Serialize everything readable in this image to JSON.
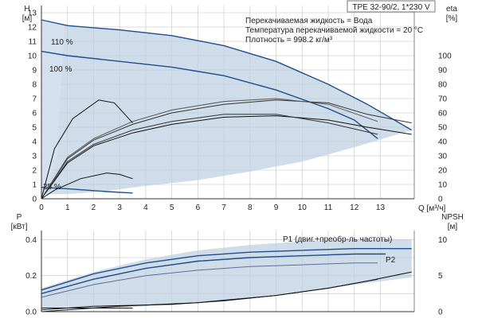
{
  "chart_data": [
    {
      "type": "line",
      "title": "TPE 32-90/2, 1*230 V",
      "info": [
        "Перекачиваемая жидкость = Вода",
        "Температура перекачиваемой жидкости = 20 °C",
        "Плотность = 998.2 кг/м³"
      ],
      "y_left": {
        "label": "H",
        "unit": "[м]",
        "ticks": [
          0,
          1,
          2,
          3,
          4,
          5,
          6,
          7,
          8,
          9,
          10,
          11,
          12,
          13
        ]
      },
      "y_right": {
        "label": "eta",
        "unit": "[%]",
        "ticks": [
          0,
          10,
          20,
          30,
          40,
          50,
          60,
          70,
          80,
          90,
          100
        ]
      },
      "x": {
        "label": "Q [м³/ч]",
        "ticks": [
          0,
          1,
          2,
          3,
          4,
          5,
          6,
          7,
          8,
          9,
          10,
          11,
          12,
          13
        ]
      },
      "xlim": [
        0,
        14.3
      ],
      "ylim": [
        0,
        13.5
      ],
      "grid": true,
      "annotations": [
        "110 %",
        "100 %",
        "25 %"
      ],
      "series": [
        {
          "name": "110 %",
          "role": "head",
          "color": "#1f4e8c",
          "points": [
            [
              0,
              12.5
            ],
            [
              1,
              12.1
            ],
            [
              3,
              11.8
            ],
            [
              5,
              11.4
            ],
            [
              7,
              10.7
            ],
            [
              9,
              9.6
            ],
            [
              11,
              8.0
            ],
            [
              12.5,
              6.6
            ],
            [
              14.2,
              4.8
            ]
          ]
        },
        {
          "name": "100 %",
          "role": "head",
          "color": "#1f4e8c",
          "points": [
            [
              0,
              10.3
            ],
            [
              1,
              10.0
            ],
            [
              3,
              9.6
            ],
            [
              5,
              9.2
            ],
            [
              7,
              8.6
            ],
            [
              9,
              7.6
            ],
            [
              11,
              6.3
            ],
            [
              12,
              5.5
            ],
            [
              12.9,
              4.2
            ]
          ]
        },
        {
          "name": "25 %",
          "role": "head",
          "color": "#1f4e8c",
          "points": [
            [
              0,
              0.8
            ],
            [
              1,
              0.7
            ],
            [
              2.5,
              0.5
            ],
            [
              3.5,
              0.4
            ]
          ]
        },
        {
          "role": "efficiency",
          "color": "#111111",
          "points": [
            [
              0,
              0
            ],
            [
              1,
              2.5
            ],
            [
              2,
              3.7
            ],
            [
              3.5,
              4.6
            ],
            [
              5,
              5.2
            ],
            [
              7,
              5.7
            ],
            [
              9,
              5.8
            ],
            [
              11,
              5.5
            ],
            [
              12.5,
              5.0
            ],
            [
              14.2,
              4.5
            ]
          ]
        },
        {
          "role": "efficiency",
          "color": "#333333",
          "points": [
            [
              0,
              0
            ],
            [
              1,
              2.8
            ],
            [
              2,
              4.1
            ],
            [
              3.5,
              5.2
            ],
            [
              5,
              6.0
            ],
            [
              7,
              6.6
            ],
            [
              9,
              6.9
            ],
            [
              11,
              6.7
            ],
            [
              12.5,
              5.9
            ],
            [
              14.2,
              5.3
            ]
          ]
        },
        {
          "role": "efficiency",
          "color": "#555555",
          "points": [
            [
              0,
              0
            ],
            [
              1,
              2.9
            ],
            [
              2,
              4.2
            ],
            [
              3.5,
              5.4
            ],
            [
              5,
              6.2
            ],
            [
              7,
              6.8
            ],
            [
              9,
              7.0
            ],
            [
              11,
              6.6
            ],
            [
              12.9,
              5.4
            ]
          ]
        },
        {
          "role": "efficiency",
          "color": "#333333",
          "points": [
            [
              0,
              0
            ],
            [
              1,
              2.6
            ],
            [
              2,
              3.8
            ],
            [
              3.5,
              4.8
            ],
            [
              5,
              5.4
            ],
            [
              7,
              5.9
            ],
            [
              9,
              5.9
            ],
            [
              11,
              5.3
            ],
            [
              12.9,
              4.5
            ]
          ]
        },
        {
          "role": "efficiency",
          "color": "#111111",
          "points": [
            [
              0,
              0
            ],
            [
              0.5,
              3.5
            ],
            [
              1.2,
              5.6
            ],
            [
              2.2,
              6.9
            ],
            [
              2.8,
              6.7
            ],
            [
              3.5,
              5.3
            ]
          ]
        },
        {
          "role": "efficiency",
          "color": "#111111",
          "points": [
            [
              0,
              0
            ],
            [
              0.5,
              0.6
            ],
            [
              1.5,
              1.4
            ],
            [
              2.5,
              1.8
            ],
            [
              3,
              1.7
            ],
            [
              3.5,
              1.4
            ]
          ]
        }
      ]
    },
    {
      "type": "line",
      "y_left": {
        "label": "P",
        "unit": "[кВт]",
        "ticks": [
          0.0,
          0.2,
          0.4
        ]
      },
      "y_right": {
        "label": "NPSH",
        "unit": "[м]",
        "ticks": [
          0,
          5,
          10
        ]
      },
      "xlim": [
        0,
        14.3
      ],
      "ylim": [
        0,
        0.45
      ],
      "grid": true,
      "labels": [
        "P1 (двиг.+преобр-ль частоты)",
        "P2"
      ],
      "series": [
        {
          "name": "P1 (двиг.+преобр-ль частоты)",
          "color": "#1f4e8c",
          "points": [
            [
              0,
              0.12
            ],
            [
              2,
              0.21
            ],
            [
              4,
              0.27
            ],
            [
              6,
              0.31
            ],
            [
              8,
              0.33
            ],
            [
              10,
              0.34
            ],
            [
              12,
              0.35
            ],
            [
              14.2,
              0.35
            ]
          ]
        },
        {
          "name": "P2",
          "color": "#1f4e8c",
          "points": [
            [
              0,
              0.1
            ],
            [
              2,
              0.18
            ],
            [
              4,
              0.24
            ],
            [
              6,
              0.28
            ],
            [
              8,
              0.3
            ],
            [
              10,
              0.31
            ],
            [
              12,
              0.32
            ],
            [
              13.2,
              0.32
            ]
          ]
        },
        {
          "color": "#5b6f95",
          "points": [
            [
              0,
              0.08
            ],
            [
              2,
              0.15
            ],
            [
              4,
              0.2
            ],
            [
              6,
              0.23
            ],
            [
              8,
              0.25
            ],
            [
              10,
              0.26
            ],
            [
              12,
              0.27
            ],
            [
              12.9,
              0.27
            ]
          ]
        },
        {
          "color": "#111111",
          "points": [
            [
              0,
              0.02
            ],
            [
              1,
              0.02
            ],
            [
              2,
              0.02
            ],
            [
              3,
              0.02
            ],
            [
              3.5,
              0.02
            ]
          ]
        },
        {
          "role": "npsh",
          "color": "#111111",
          "points": [
            [
              0,
              0.01
            ],
            [
              2,
              0.03
            ],
            [
              5,
              0.04
            ],
            [
              7,
              0.06
            ],
            [
              9,
              0.09
            ],
            [
              11,
              0.13
            ],
            [
              12.5,
              0.17
            ],
            [
              14.2,
              0.22
            ]
          ]
        },
        {
          "role": "npsh",
          "color": "#111111",
          "points": [
            [
              0,
              0.0
            ],
            [
              3,
              0.03
            ],
            [
              6,
              0.05
            ],
            [
              9,
              0.09
            ],
            [
              11,
              0.13
            ],
            [
              12.9,
              0.18
            ]
          ]
        }
      ]
    }
  ]
}
